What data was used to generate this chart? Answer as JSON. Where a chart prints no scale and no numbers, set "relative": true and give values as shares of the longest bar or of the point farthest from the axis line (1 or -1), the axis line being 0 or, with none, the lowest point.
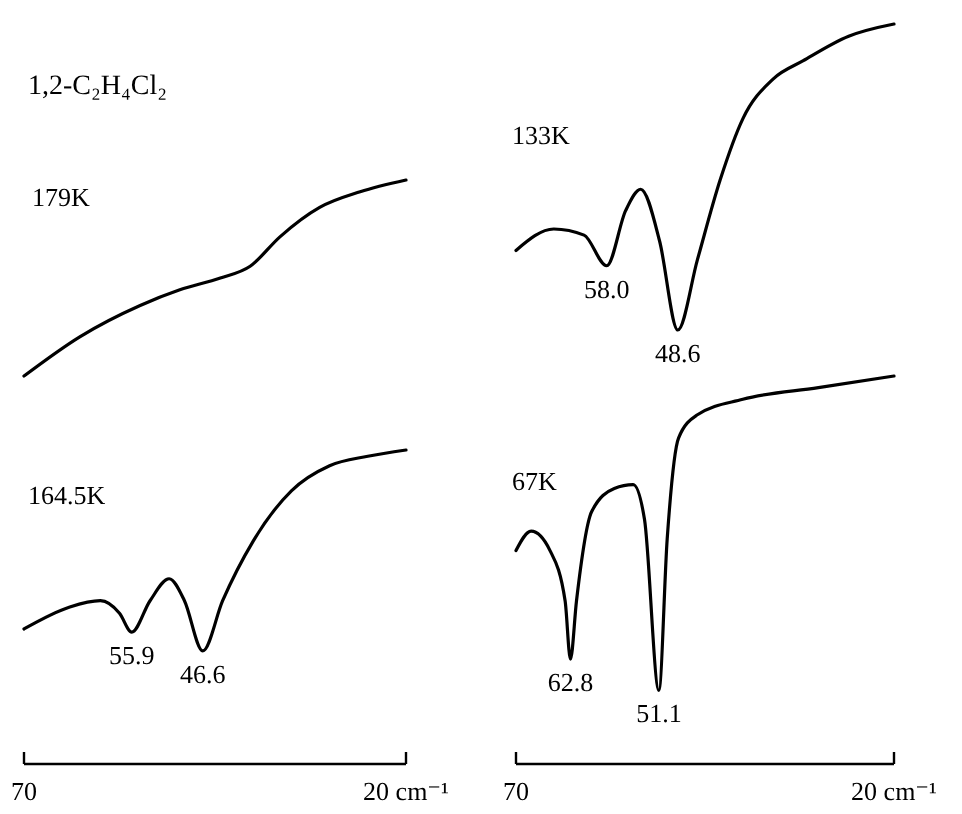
{
  "chart_data": [
    {
      "type": "line",
      "title": "1,2-C₂H₄Cl₂",
      "relative": true,
      "xlim": [
        70,
        20
      ],
      "tick_labels": false,
      "annotations": [
        "179K"
      ],
      "series": [
        {
          "color": "#000000",
          "x": [
            70,
            62.7,
            54.8,
            49.6,
            44.3,
            40.4,
            36.5,
            31.3,
            26,
            20
          ],
          "values": [
            0,
            0.2,
            0.36,
            0.44,
            0.5,
            0.56,
            0.71,
            0.86,
            0.94,
            1
          ]
        }
      ]
    },
    {
      "type": "line",
      "relative": true,
      "xlim": [
        70,
        20
      ],
      "tick_labels": false,
      "annotations": [
        "133K",
        {
          "text": "58.0",
          "x": 58,
          "y": 0.21
        },
        {
          "text": "48.6",
          "x": 48.6,
          "y": 0
        }
      ],
      "series": [
        {
          "color": "#000000",
          "x": [
            70,
            65,
            61,
            58,
            55.5,
            53.5,
            51,
            48.6,
            46,
            43,
            40,
            36,
            32,
            26,
            20
          ],
          "values": [
            0.26,
            0.33,
            0.31,
            0.21,
            0.39,
            0.46,
            0.29,
            0,
            0.23,
            0.49,
            0.69,
            0.82,
            0.88,
            0.96,
            1
          ]
        }
      ]
    },
    {
      "type": "line",
      "relative": true,
      "xlim": [
        70,
        20
      ],
      "xticks": [
        70,
        {
          "value": 20,
          "label": "20 cm⁻¹"
        }
      ],
      "annotations": [
        "164.5K",
        {
          "text": "55.9",
          "x": 55.9,
          "y": 0.42
        },
        {
          "text": "46.6",
          "x": 46.6,
          "y": 0.36
        }
      ],
      "series": [
        {
          "color": "#000000",
          "x": [
            70,
            64,
            60,
            57.5,
            55.9,
            53.5,
            51,
            49,
            46.6,
            44,
            40,
            35,
            30,
            25,
            20
          ],
          "values": [
            0.43,
            0.5,
            0.52,
            0.48,
            0.42,
            0.52,
            0.59,
            0.52,
            0.36,
            0.52,
            0.71,
            0.87,
            0.95,
            0.98,
            1
          ]
        }
      ]
    },
    {
      "type": "line",
      "relative": true,
      "xlim": [
        70,
        20
      ],
      "xticks": [
        70,
        {
          "value": 20,
          "label": "20 cm⁻¹"
        }
      ],
      "annotations": [
        "67K",
        {
          "text": "62.8",
          "x": 62.8,
          "y": 0.27
        },
        {
          "text": "51.1",
          "x": 51.1,
          "y": 0.19
        }
      ],
      "series": [
        {
          "color": "#000000",
          "x": [
            70,
            68,
            65.5,
            63.5,
            62.8,
            62,
            60,
            57,
            54.5,
            53,
            51.1,
            50,
            48.5,
            46,
            40,
            30,
            20
          ],
          "values": [
            0.55,
            0.6,
            0.55,
            0.42,
            0.27,
            0.42,
            0.65,
            0.71,
            0.72,
            0.63,
            0.19,
            0.58,
            0.84,
            0.9,
            0.94,
            0.97,
            1
          ]
        }
      ]
    }
  ]
}
